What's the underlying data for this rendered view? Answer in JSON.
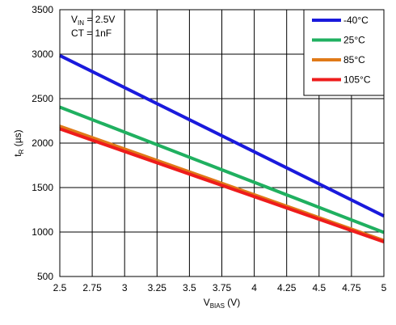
{
  "chart_data": {
    "type": "line",
    "xlabel": {
      "main": "V",
      "sub": "BIAS",
      "unit": " (V)"
    },
    "ylabel": {
      "main": "t",
      "sub": "R",
      "unit": " (µs)"
    },
    "xlim": [
      2.5,
      5
    ],
    "ylim": [
      500,
      3500
    ],
    "xticks": [
      2.5,
      2.75,
      3,
      3.25,
      3.5,
      3.75,
      4,
      4.25,
      4.5,
      4.75,
      5
    ],
    "xtick_labels": [
      "2.5",
      "2.75",
      "3",
      "3.25",
      "3.5",
      "3.75",
      "4",
      "4.25",
      "4.5",
      "4.75",
      "5"
    ],
    "yticks": [
      500,
      1000,
      1500,
      2000,
      2500,
      3000,
      3500
    ],
    "ytick_labels": [
      "500",
      "1000",
      "1500",
      "2000",
      "2500",
      "3000",
      "3500"
    ],
    "grid": true,
    "legend_position": "top-right",
    "annotations": [
      {
        "main": "V",
        "sub": "IN",
        "rest": " = 2.5V"
      },
      {
        "main": "CT = 1nF",
        "sub": "",
        "rest": ""
      }
    ],
    "series": [
      {
        "name": "-40°C",
        "color": "#1a1adc",
        "x": [
          2.5,
          5
        ],
        "y": [
          2985,
          1180
        ]
      },
      {
        "name": "25°C",
        "color": "#20b060",
        "x": [
          2.5,
          5
        ],
        "y": [
          2405,
          995
        ]
      },
      {
        "name": "85°C",
        "color": "#e07a18",
        "x": [
          2.5,
          5
        ],
        "y": [
          2190,
          905
        ]
      },
      {
        "name": "105°C",
        "color": "#ee1c1c",
        "x": [
          2.5,
          5
        ],
        "y": [
          2160,
          890
        ]
      }
    ]
  }
}
